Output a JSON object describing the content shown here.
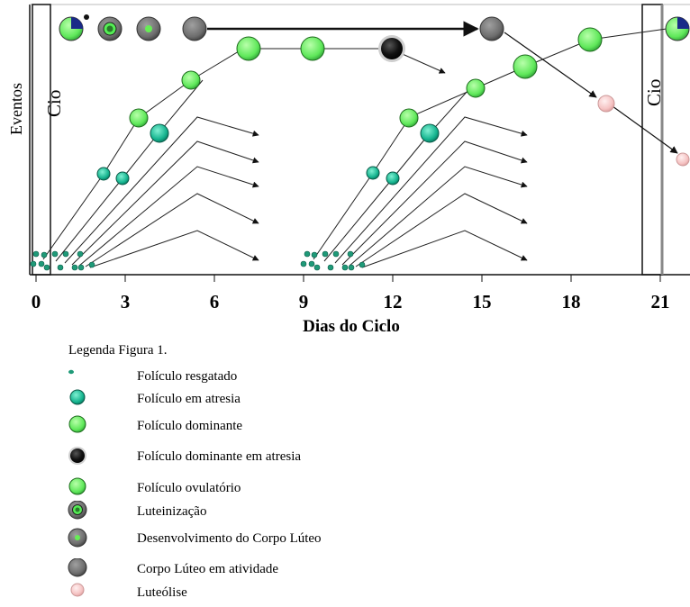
{
  "axis": {
    "xlabel": "Dias do Ciclo",
    "ylabel": "Eventos",
    "ticks": [
      "0",
      "3",
      "6",
      "9",
      "12",
      "15",
      "18",
      "21"
    ]
  },
  "estro_labels": [
    "Cio",
    "Cio"
  ],
  "colors": {
    "resgatado": "#1f8f70",
    "atresia": "#11a88a",
    "dominante": "#66ee55",
    "dominante_atresia": "#111111",
    "ovulatorio": "#55ee66",
    "luteinizacao": "#555555",
    "corpo_luteo": "#6f6f6f",
    "luteolise": "#f5c4c4",
    "arrow": "#111111"
  },
  "legend": {
    "title": "Legenda Figura 1.",
    "items": [
      {
        "label": "Folículo resgatado",
        "icon": "tiny-green-dot-icon"
      },
      {
        "label": "Folículo em atresia",
        "icon": "teal-circle-icon"
      },
      {
        "label": "Folículo dominante",
        "icon": "green-circle-icon"
      },
      {
        "label": "Folículo dominante em atresia",
        "icon": "black-circle-icon"
      },
      {
        "label": "Folículo ovulatório",
        "icon": "green-circle-icon"
      },
      {
        "label": "Luteinização",
        "icon": "gray-ring-icon"
      },
      {
        "label": "Desenvolvimento do Corpo Lúteo",
        "icon": "gray-circle-green-center-icon"
      },
      {
        "label": "Corpo Lúteo em atividade",
        "icon": "gray-circle-icon"
      },
      {
        "label": "Luteólise",
        "icon": "pink-circle-icon"
      }
    ]
  }
}
